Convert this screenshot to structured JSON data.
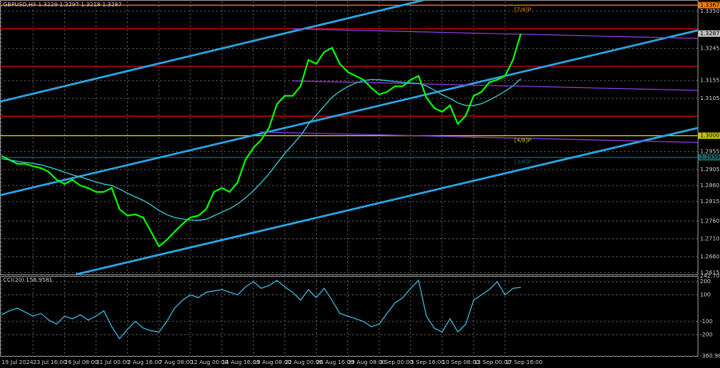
{
  "chart_data": [
    {
      "type": "line",
      "title": "GBPUSD,H4 1.3229 1.3297 1.3218 1.3287",
      "categories": [
        "19 Jul 2024",
        null,
        null,
        null,
        "23 Jul 16:00",
        null,
        null,
        null,
        "26 Jul 08:00",
        null,
        null,
        null,
        "31 Jul 00:00",
        null,
        null,
        null,
        "2 Aug 16:00",
        null,
        null,
        null,
        "7 Aug 08:00",
        null,
        null,
        null,
        "12 Aug 00:00",
        null,
        null,
        null,
        "14 Aug 16:00",
        null,
        null,
        null,
        "19 Aug 08:00",
        null,
        null,
        null,
        "22 Aug 00:00",
        null,
        null,
        null,
        "26 Aug 16:00",
        null,
        null,
        null,
        "29 Aug 08:00",
        null,
        null,
        null,
        "3 Sep 00:00",
        null,
        null,
        null,
        "5 Sep 16:00",
        null,
        null,
        null,
        "10 Sep 08:00",
        null,
        null,
        null,
        "13 Sep 00:00",
        null,
        null,
        null,
        "17 Sep 16:00",
        null,
        null
      ],
      "series": [
        {
          "color": "#00ff00",
          "values": [
            1.2943,
            1.2932,
            1.2921,
            1.2921,
            1.2914,
            1.2909,
            1.2898,
            1.2876,
            1.2864,
            1.2876,
            1.286,
            1.2853,
            1.2842,
            1.2842,
            1.2853,
            1.2793,
            1.2775,
            1.2779,
            1.277,
            1.273,
            1.2689,
            1.2707,
            1.273,
            1.2752,
            1.277,
            1.2775,
            1.2793,
            1.2842,
            1.2853,
            1.2842,
            1.2869,
            1.2932,
            1.2966,
            1.2988,
            1.3022,
            1.3089,
            1.3112,
            1.3112,
            1.3139,
            1.3213,
            1.3202,
            1.3235,
            1.3247,
            1.3202,
            1.3179,
            1.3168,
            1.3157,
            1.3134,
            1.3116,
            1.3123,
            1.3139,
            1.3139,
            1.3157,
            1.3168,
            1.3107,
            1.3078,
            1.3067,
            1.3085,
            1.3033,
            1.3056,
            1.3112,
            1.3123,
            1.315,
            1.3157,
            1.3168,
            1.3213,
            1.3287
          ]
        },
        {
          "color": "#33c0c8",
          "values": [
            1.2935,
            1.2932,
            1.2928,
            1.2925,
            1.2922,
            1.2918,
            1.2912,
            1.2905,
            1.2897,
            1.289,
            1.2884,
            1.2877,
            1.287,
            1.2864,
            1.286,
            1.285,
            1.2838,
            1.2828,
            1.2818,
            1.2805,
            1.279,
            1.2778,
            1.277,
            1.2766,
            1.2763,
            1.2762,
            1.2765,
            1.2775,
            1.2785,
            1.2795,
            1.2808,
            1.2825,
            1.2845,
            1.2868,
            1.2893,
            1.2922,
            1.295,
            1.2975,
            1.3,
            1.3032,
            1.3058,
            1.3083,
            1.3108,
            1.3125,
            1.3138,
            1.3148,
            1.3155,
            1.3158,
            1.3157,
            1.3155,
            1.3152,
            1.315,
            1.3148,
            1.3147,
            1.314,
            1.3128,
            1.3115,
            1.3105,
            1.3092,
            1.3085,
            1.3085,
            1.309,
            1.31,
            1.3112,
            1.3125,
            1.314,
            1.316
          ]
        }
      ],
      "ylim": [
        1.261,
        1.3377
      ],
      "yticks": [
        1.2615,
        {
          "value": 1.266,
          "label": "1.2660"
        },
        {
          "value": 1.271,
          "label": "1.2710"
        },
        {
          "value": 1.276,
          "label": "1.2760"
        },
        1.2815,
        {
          "value": 1.286,
          "label": "1.2860"
        },
        1.2905,
        1.2955,
        1.3105,
        1.3155,
        1.3245,
        {
          "value": 1.335,
          "label": "1.3350"
        }
      ],
      "current_price": 1.3287,
      "levels": [
        {
          "value": 1.3367,
          "color": "#ff7a00",
          "label": "[7/8]P",
          "price_label": "1.3367"
        },
        {
          "value": 1.3301,
          "color": "#e00000"
        },
        {
          "value": 1.3195,
          "color": "#e00000"
        },
        {
          "value": 1.3055,
          "color": "#e00000"
        },
        {
          "value": 1.3,
          "color": "#c8c800",
          "label": "[4/8]P",
          "price_label": "1.3000"
        },
        {
          "value": 1.2939,
          "color": "#1a6060",
          "label": "[3/8]P",
          "price_label": "1.2939"
        }
      ],
      "grid": true
    },
    {
      "type": "line",
      "title": "CCI(20) 156.9581",
      "series": [
        {
          "color": "#3aa8c8",
          "values": [
            -50,
            -20,
            0,
            -30,
            -60,
            -40,
            -90,
            -120,
            -60,
            -80,
            -50,
            -90,
            -60,
            -20,
            -140,
            -230,
            -160,
            -100,
            -150,
            -170,
            -180,
            -100,
            0,
            60,
            100,
            80,
            120,
            130,
            140,
            120,
            100,
            160,
            200,
            150,
            170,
            210,
            160,
            120,
            60,
            140,
            80,
            150,
            60,
            -40,
            -60,
            -80,
            -100,
            -140,
            -120,
            -40,
            40,
            80,
            150,
            210,
            -60,
            -150,
            -180,
            -80,
            -180,
            -120,
            60,
            100,
            140,
            200,
            100,
            150,
            156.9581
          ]
        }
      ],
      "ylim": [
        -360.984,
        242.7093
      ],
      "yticks": [
        -360.984,
        -200,
        -100,
        100,
        200,
        242.7093
      ],
      "grid": true
    }
  ]
}
